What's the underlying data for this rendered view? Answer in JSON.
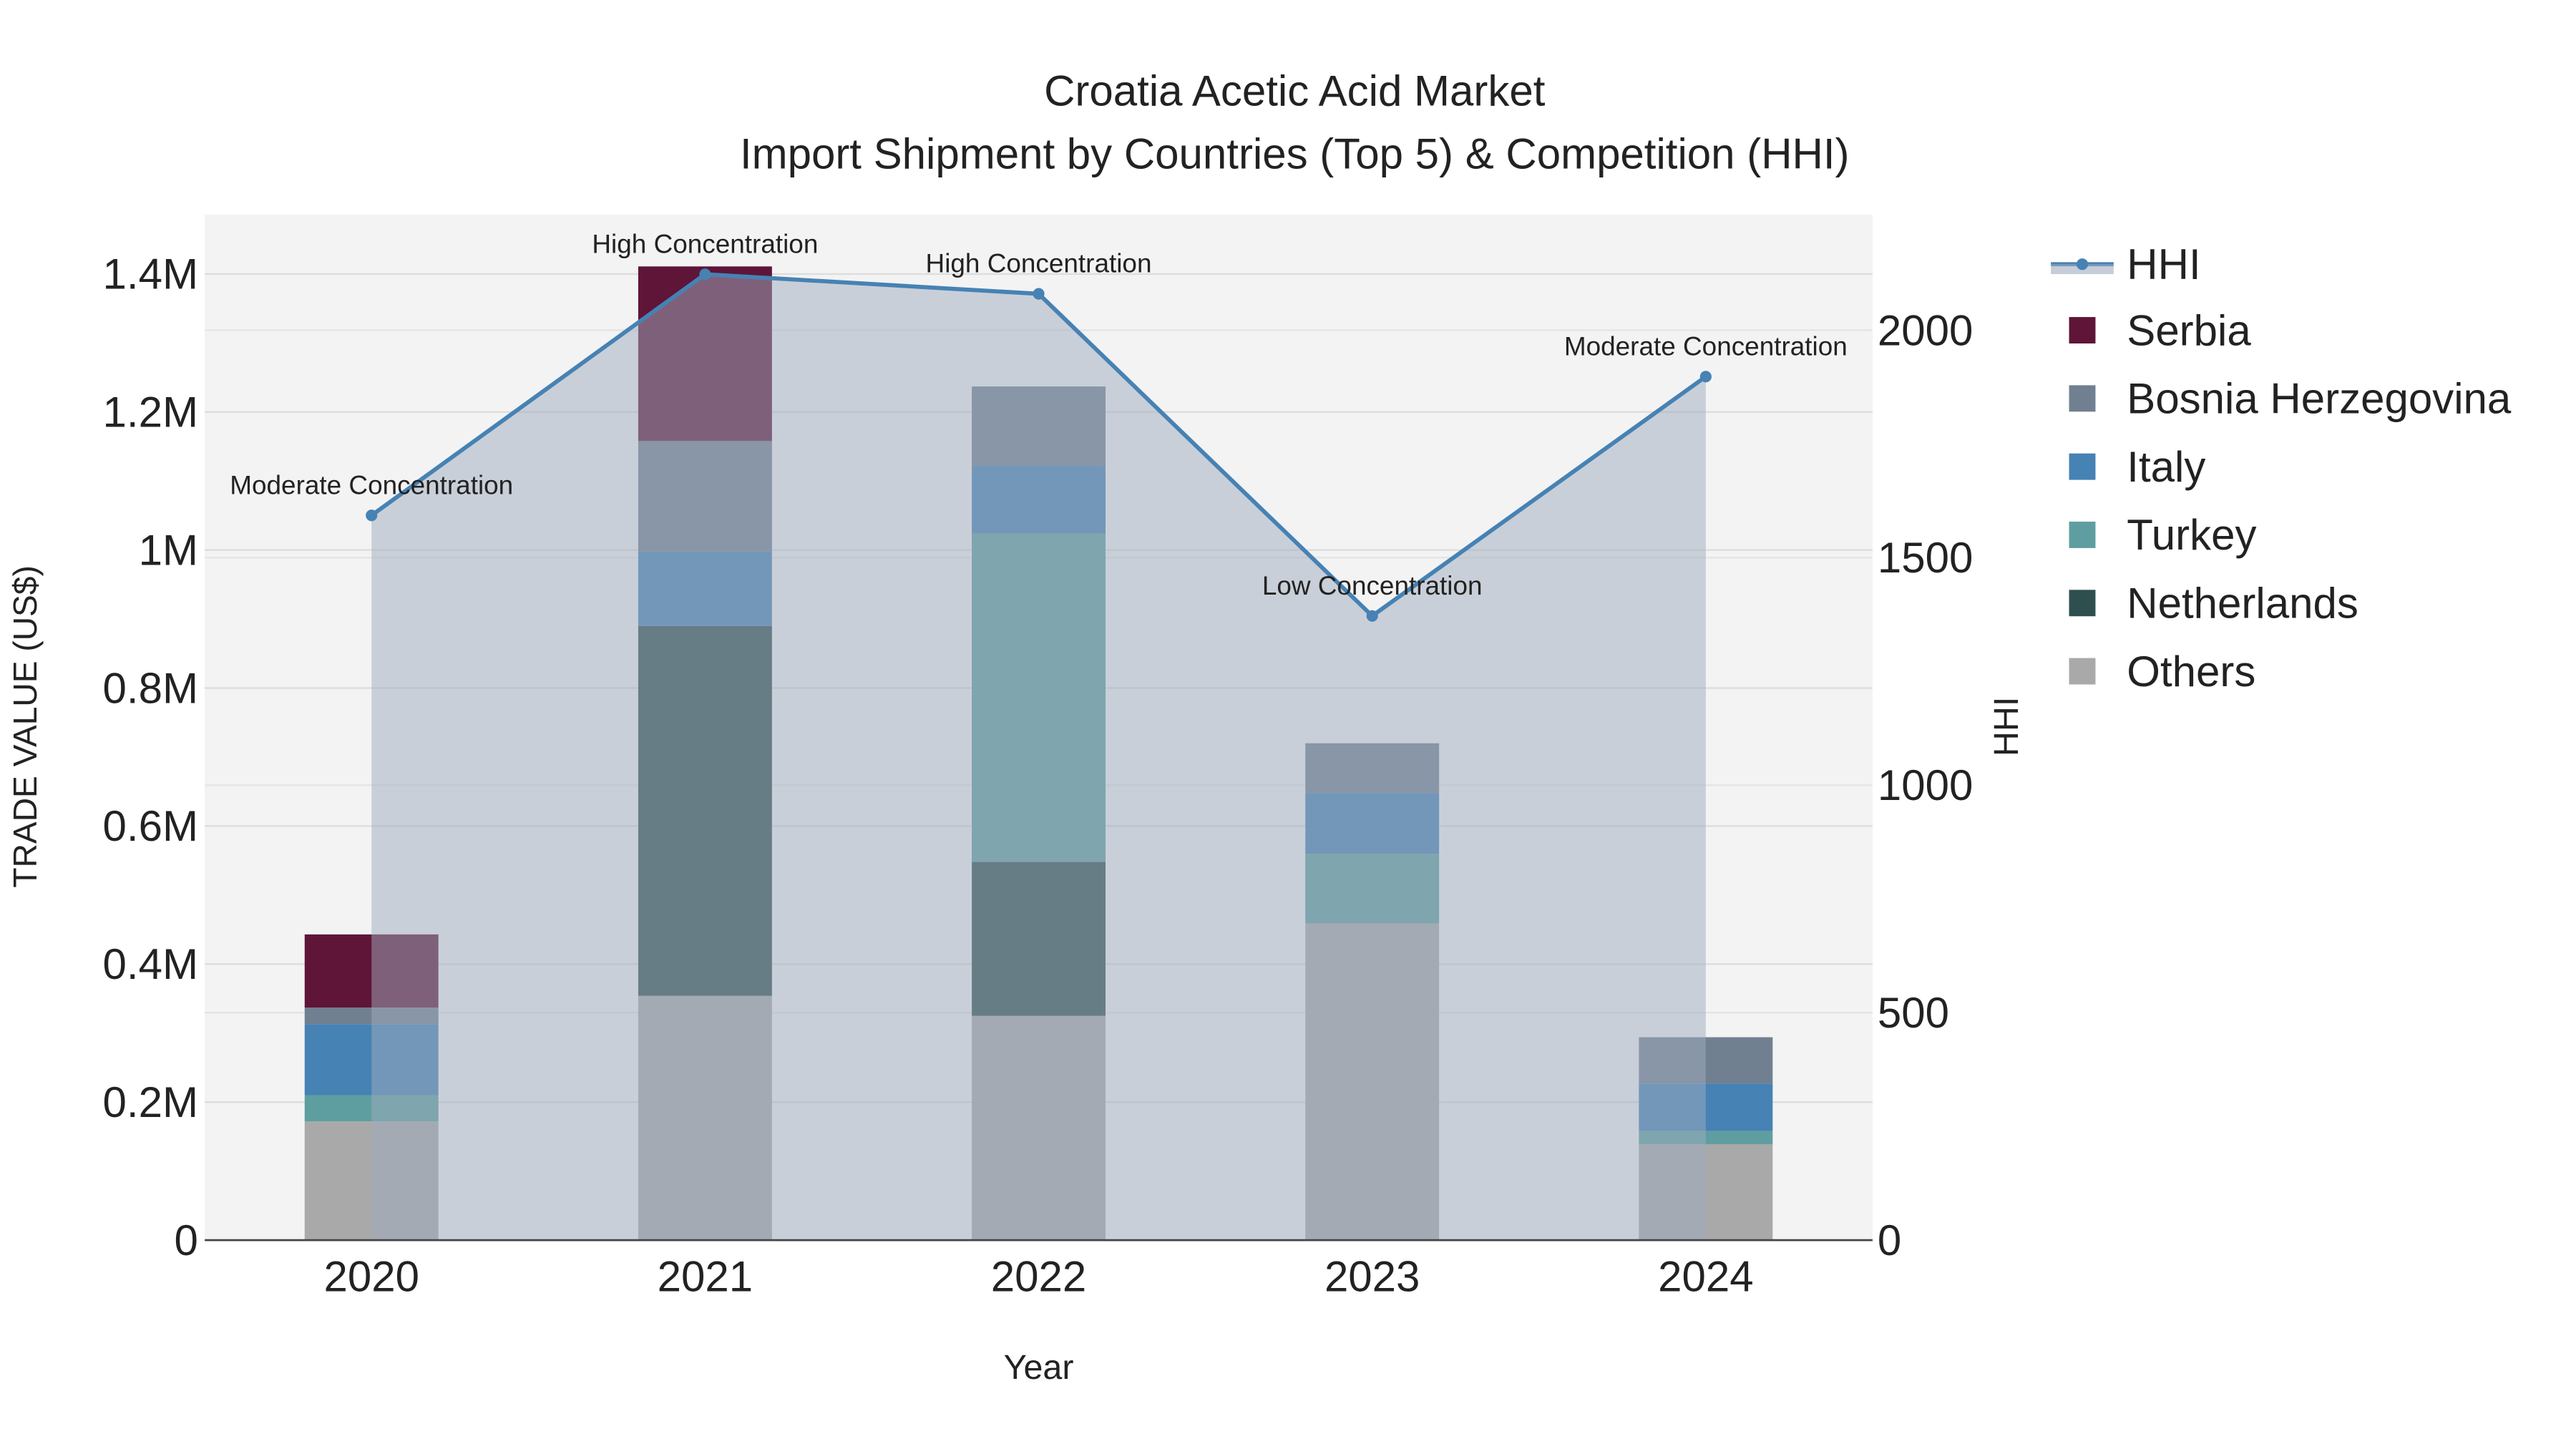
{
  "chart_data": {
    "type": "bar",
    "stacked": true,
    "title": "Croatia Acetic Acid Market",
    "subtitle": "Import Shipment by Countries (Top 5) & Competition (HHI)",
    "xlabel": "Year",
    "ylabel": "TRADE VALUE (US$)",
    "y2label": "HHI",
    "categories": [
      "2020",
      "2021",
      "2022",
      "2023",
      "2024"
    ],
    "ylim": [
      0,
      1486000
    ],
    "y2lim": [
      0,
      2254
    ],
    "yticks": [
      0,
      200000,
      400000,
      600000,
      800000,
      1000000,
      1200000,
      1400000
    ],
    "ytick_labels": [
      "0",
      "0.2M",
      "0.4M",
      "0.6M",
      "0.8M",
      "1M",
      "1.2M",
      "1.4M"
    ],
    "y2ticks": [
      0,
      500,
      1000,
      1500,
      2000
    ],
    "y2tick_labels": [
      "0",
      "500",
      "1000",
      "1500",
      "2000"
    ],
    "series": [
      {
        "name": "Others",
        "color": "#a9a9a9",
        "values": [
          172000,
          354000,
          325000,
          459000,
          139000
        ]
      },
      {
        "name": "Netherlands",
        "color": "#2f4f4f",
        "values": [
          0,
          536000,
          223000,
          0,
          0
        ]
      },
      {
        "name": "Turkey",
        "color": "#5f9ea0",
        "values": [
          38000,
          0,
          476000,
          101000,
          19000
        ]
      },
      {
        "name": "Italy",
        "color": "#4682b4",
        "values": [
          103000,
          108000,
          98000,
          88000,
          69000
        ]
      },
      {
        "name": "Bosnia Herzegovina",
        "color": "#708090",
        "values": [
          24000,
          160000,
          115000,
          72000,
          67000
        ]
      },
      {
        "name": "Serbia",
        "color": "#5e1538",
        "values": [
          106000,
          253000,
          0,
          0,
          0
        ]
      }
    ],
    "hhi": {
      "name": "HHI",
      "color": "#4682b4",
      "values": [
        1593,
        2123,
        2080,
        1372,
        1898
      ],
      "annotations": [
        "Moderate Concentration",
        "High Concentration",
        "High Concentration",
        "Low Concentration",
        "Moderate Concentration"
      ]
    },
    "legend": {
      "placement": "right",
      "order": [
        "HHI",
        "Serbia",
        "Bosnia Herzegovina",
        "Italy",
        "Turkey",
        "Netherlands",
        "Others"
      ]
    },
    "grid": true
  }
}
